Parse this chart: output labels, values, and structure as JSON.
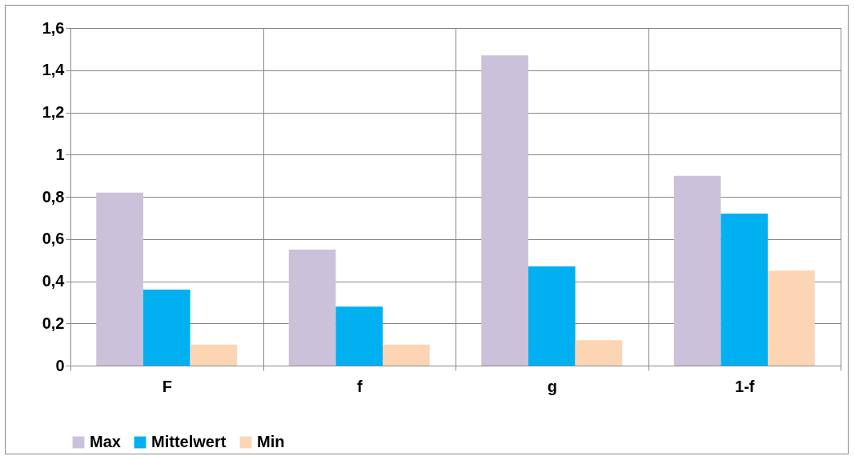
{
  "chart_data": {
    "type": "bar",
    "categories": [
      "F",
      "f",
      "g",
      "1-f"
    ],
    "series": [
      {
        "name": "Max",
        "color": "#ccc1da",
        "values": [
          0.82,
          0.55,
          1.47,
          0.9
        ]
      },
      {
        "name": "Mittelwert",
        "color": "#00b0f0",
        "values": [
          0.36,
          0.28,
          0.47,
          0.72
        ]
      },
      {
        "name": "Min",
        "color": "#fcd5b5",
        "values": [
          0.1,
          0.1,
          0.12,
          0.45
        ]
      }
    ],
    "ylim": [
      0,
      1.6
    ],
    "yticks": [
      0,
      {
        "value": 0.2,
        "label": "0,2"
      },
      {
        "value": 0.4,
        "label": "0,4"
      },
      {
        "value": 0.6,
        "label": "0,6"
      },
      {
        "value": 0.8,
        "label": "0,8"
      },
      1,
      {
        "value": 1.2,
        "label": "1,2"
      },
      {
        "value": 1.4,
        "label": "1,4"
      },
      {
        "value": 1.6,
        "label": "1,6"
      }
    ],
    "grid": true,
    "legend": "bottom"
  }
}
